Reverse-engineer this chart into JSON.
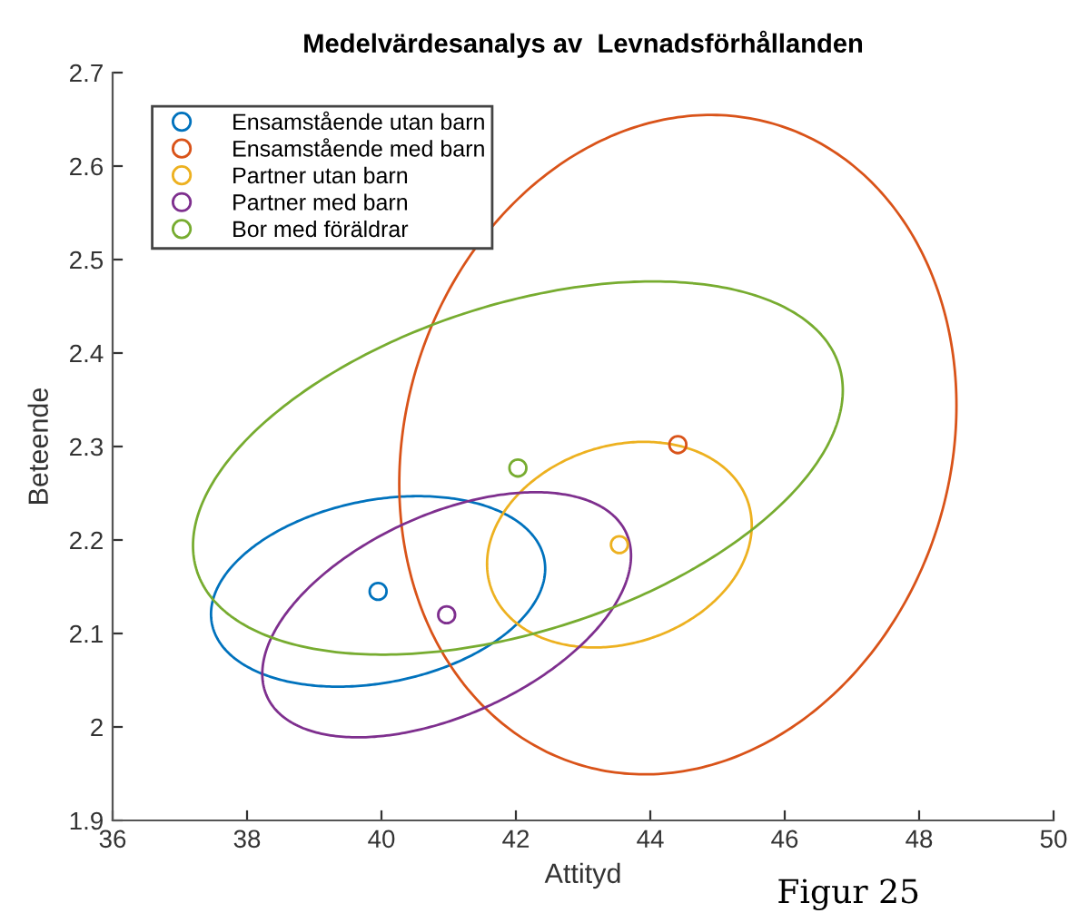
{
  "chart_data": {
    "type": "scatter",
    "title": "Medelvärdesanalys av  Levnadsförhållanden",
    "xlabel": "Attityd",
    "ylabel": "Beteende",
    "xlim": [
      36,
      50
    ],
    "xticks": [
      36,
      38,
      40,
      42,
      44,
      46,
      48,
      50
    ],
    "ylim": [
      1.9,
      2.7
    ],
    "yticks": [
      1.9,
      2,
      2.1,
      2.2,
      2.3,
      2.4,
      2.5,
      2.6,
      2.7
    ],
    "grid": false,
    "legend": "top left",
    "marker": "circle",
    "series": [
      {
        "name": "Ensamstående utan barn",
        "color": "#0072bd",
        "x": [
          39.95
        ],
        "values": [
          2.145
        ]
      },
      {
        "name": "Ensamstående med barn",
        "color": "#d95319",
        "x": [
          44.41
        ],
        "values": [
          2.302
        ]
      },
      {
        "name": "Partner utan barn",
        "color": "#edb120",
        "x": [
          43.54
        ],
        "values": [
          2.195
        ]
      },
      {
        "name": "Partner med barn",
        "color": "#7e2f8e",
        "x": [
          40.97
        ],
        "values": [
          2.12
        ]
      },
      {
        "name": "Bor med föräldrar",
        "color": "#77ac30",
        "x": [
          42.03
        ],
        "values": [
          2.277
        ]
      }
    ],
    "annotations": [
      "Figur 25"
    ]
  }
}
